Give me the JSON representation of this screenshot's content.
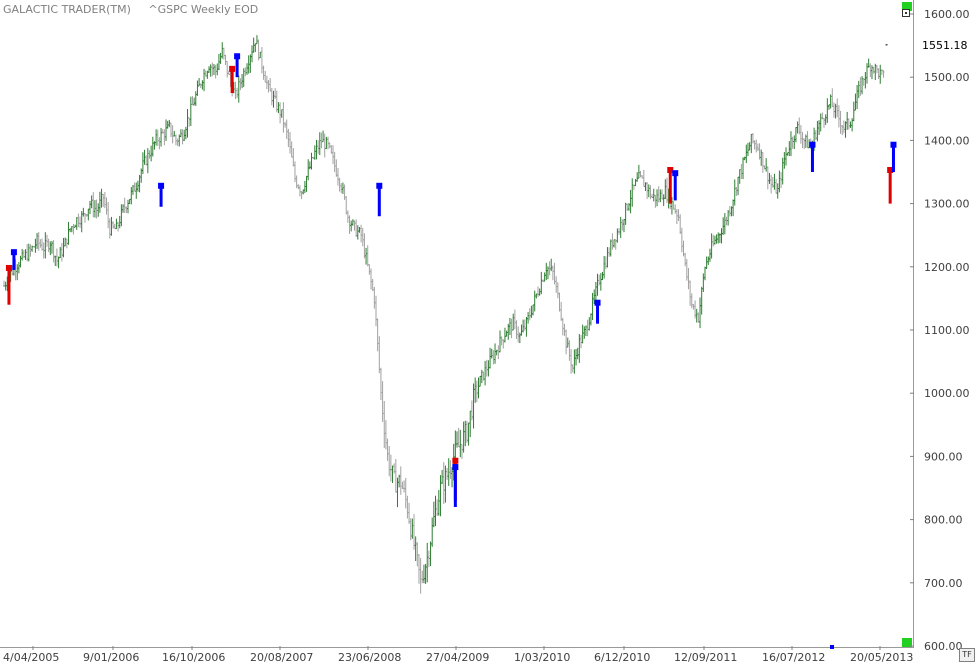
{
  "app_title": "GALACTIC TRADER(TM)",
  "series_title": "^GSPC Weekly EOD",
  "last_price_label": "1551.18",
  "corner_button": "TF",
  "colors": {
    "up_bar": "#2e7d32",
    "down_bar": "#a0a0a0",
    "signal_blue": "#0000ff",
    "signal_red": "#e00000",
    "accent_green": "#22d022"
  },
  "chart_data": {
    "type": "ohlc",
    "title": "^GSPC Weekly EOD",
    "x_tick_labels": [
      "4/04/2005",
      "9/01/2006",
      "16/10/2006",
      "20/08/2007",
      "23/06/2008",
      "27/04/2009",
      "1/03/2010",
      "6/12/2010",
      "12/09/2011",
      "16/07/2012",
      "20/05/2013"
    ],
    "y_tick_labels": [
      "1600.00",
      "1500.00",
      "1400.00",
      "1300.00",
      "1200.00",
      "1100.00",
      "1000.00",
      "900.00",
      "800.00",
      "700.00",
      "600.00"
    ],
    "ylim": [
      600,
      1600
    ],
    "last_price": 1551.18,
    "price_path": [
      [
        0,
        1170
      ],
      [
        4,
        1190
      ],
      [
        8,
        1205
      ],
      [
        12,
        1215
      ],
      [
        16,
        1225
      ],
      [
        20,
        1240
      ],
      [
        24,
        1230
      ],
      [
        28,
        1240
      ],
      [
        32,
        1210
      ],
      [
        36,
        1230
      ],
      [
        40,
        1260
      ],
      [
        44,
        1275
      ],
      [
        48,
        1280
      ],
      [
        52,
        1300
      ],
      [
        56,
        1290
      ],
      [
        60,
        1310
      ],
      [
        64,
        1260
      ],
      [
        68,
        1260
      ],
      [
        72,
        1290
      ],
      [
        76,
        1310
      ],
      [
        80,
        1330
      ],
      [
        84,
        1360
      ],
      [
        88,
        1380
      ],
      [
        92,
        1400
      ],
      [
        96,
        1410
      ],
      [
        100,
        1420
      ],
      [
        104,
        1400
      ],
      [
        108,
        1410
      ],
      [
        112,
        1440
      ],
      [
        116,
        1470
      ],
      [
        120,
        1500
      ],
      [
        124,
        1520
      ],
      [
        128,
        1510
      ],
      [
        132,
        1540
      ],
      [
        136,
        1500
      ],
      [
        140,
        1470
      ],
      [
        144,
        1500
      ],
      [
        148,
        1530
      ],
      [
        152,
        1560
      ],
      [
        156,
        1520
      ],
      [
        160,
        1480
      ],
      [
        164,
        1460
      ],
      [
        168,
        1440
      ],
      [
        172,
        1400
      ],
      [
        176,
        1340
      ],
      [
        180,
        1320
      ],
      [
        184,
        1350
      ],
      [
        188,
        1380
      ],
      [
        192,
        1400
      ],
      [
        196,
        1390
      ],
      [
        200,
        1360
      ],
      [
        204,
        1330
      ],
      [
        208,
        1280
      ],
      [
        212,
        1260
      ],
      [
        216,
        1250
      ],
      [
        220,
        1200
      ],
      [
        224,
        1150
      ],
      [
        228,
        1000
      ],
      [
        232,
        900
      ],
      [
        236,
        860
      ],
      [
        240,
        860
      ],
      [
        244,
        820
      ],
      [
        248,
        760
      ],
      [
        252,
        700
      ],
      [
        256,
        740
      ],
      [
        260,
        800
      ],
      [
        264,
        850
      ],
      [
        268,
        870
      ],
      [
        272,
        900
      ],
      [
        276,
        920
      ],
      [
        280,
        940
      ],
      [
        284,
        990
      ],
      [
        288,
        1020
      ],
      [
        292,
        1040
      ],
      [
        296,
        1060
      ],
      [
        300,
        1080
      ],
      [
        304,
        1100
      ],
      [
        308,
        1110
      ],
      [
        312,
        1090
      ],
      [
        316,
        1110
      ],
      [
        320,
        1140
      ],
      [
        324,
        1170
      ],
      [
        328,
        1200
      ],
      [
        332,
        1190
      ],
      [
        336,
        1140
      ],
      [
        340,
        1080
      ],
      [
        344,
        1040
      ],
      [
        348,
        1080
      ],
      [
        352,
        1100
      ],
      [
        356,
        1140
      ],
      [
        360,
        1180
      ],
      [
        364,
        1210
      ],
      [
        368,
        1240
      ],
      [
        372,
        1260
      ],
      [
        376,
        1290
      ],
      [
        380,
        1320
      ],
      [
        384,
        1340
      ],
      [
        388,
        1330
      ],
      [
        392,
        1310
      ],
      [
        396,
        1310
      ],
      [
        400,
        1320
      ],
      [
        404,
        1300
      ],
      [
        408,
        1280
      ],
      [
        412,
        1200
      ],
      [
        416,
        1140
      ],
      [
        420,
        1120
      ],
      [
        424,
        1200
      ],
      [
        428,
        1230
      ],
      [
        432,
        1250
      ],
      [
        436,
        1270
      ],
      [
        440,
        1300
      ],
      [
        444,
        1340
      ],
      [
        448,
        1370
      ],
      [
        452,
        1400
      ],
      [
        456,
        1390
      ],
      [
        460,
        1360
      ],
      [
        464,
        1330
      ],
      [
        468,
        1320
      ],
      [
        472,
        1370
      ],
      [
        476,
        1400
      ],
      [
        480,
        1420
      ],
      [
        484,
        1400
      ],
      [
        488,
        1390
      ],
      [
        492,
        1420
      ],
      [
        496,
        1440
      ],
      [
        500,
        1460
      ],
      [
        504,
        1440
      ],
      [
        508,
        1420
      ],
      [
        512,
        1430
      ],
      [
        516,
        1470
      ],
      [
        520,
        1500
      ],
      [
        524,
        1520
      ],
      [
        528,
        1510
      ],
      [
        532,
        1500
      ]
    ],
    "x_week_span": 548,
    "last_bar_week": 532,
    "signals": [
      {
        "week": 6,
        "color": "blue",
        "top": 1220,
        "bottom": 1195
      },
      {
        "week": 3,
        "color": "red",
        "top": 1195,
        "bottom": 1140
      },
      {
        "week": 95,
        "color": "blue",
        "top": 1325,
        "bottom": 1295
      },
      {
        "week": 141,
        "color": "blue",
        "top": 1530,
        "bottom": 1500
      },
      {
        "week": 138,
        "color": "red",
        "top": 1510,
        "bottom": 1475
      },
      {
        "week": 227,
        "color": "blue",
        "top": 1325,
        "bottom": 1280
      },
      {
        "week": 273,
        "color": "red",
        "top": 890,
        "bottom": 830
      },
      {
        "week": 273,
        "color": "blue",
        "top": 880,
        "bottom": 820
      },
      {
        "week": 359,
        "color": "blue",
        "top": 1140,
        "bottom": 1110
      },
      {
        "week": 403,
        "color": "red",
        "top": 1350,
        "bottom": 1300
      },
      {
        "week": 406,
        "color": "blue",
        "top": 1345,
        "bottom": 1305
      },
      {
        "week": 489,
        "color": "blue",
        "top": 1390,
        "bottom": 1350
      },
      {
        "week": 536,
        "color": "red",
        "top": 1350,
        "bottom": 1300
      },
      {
        "week": 538,
        "color": "blue",
        "top": 1390,
        "bottom": 1350
      }
    ]
  }
}
